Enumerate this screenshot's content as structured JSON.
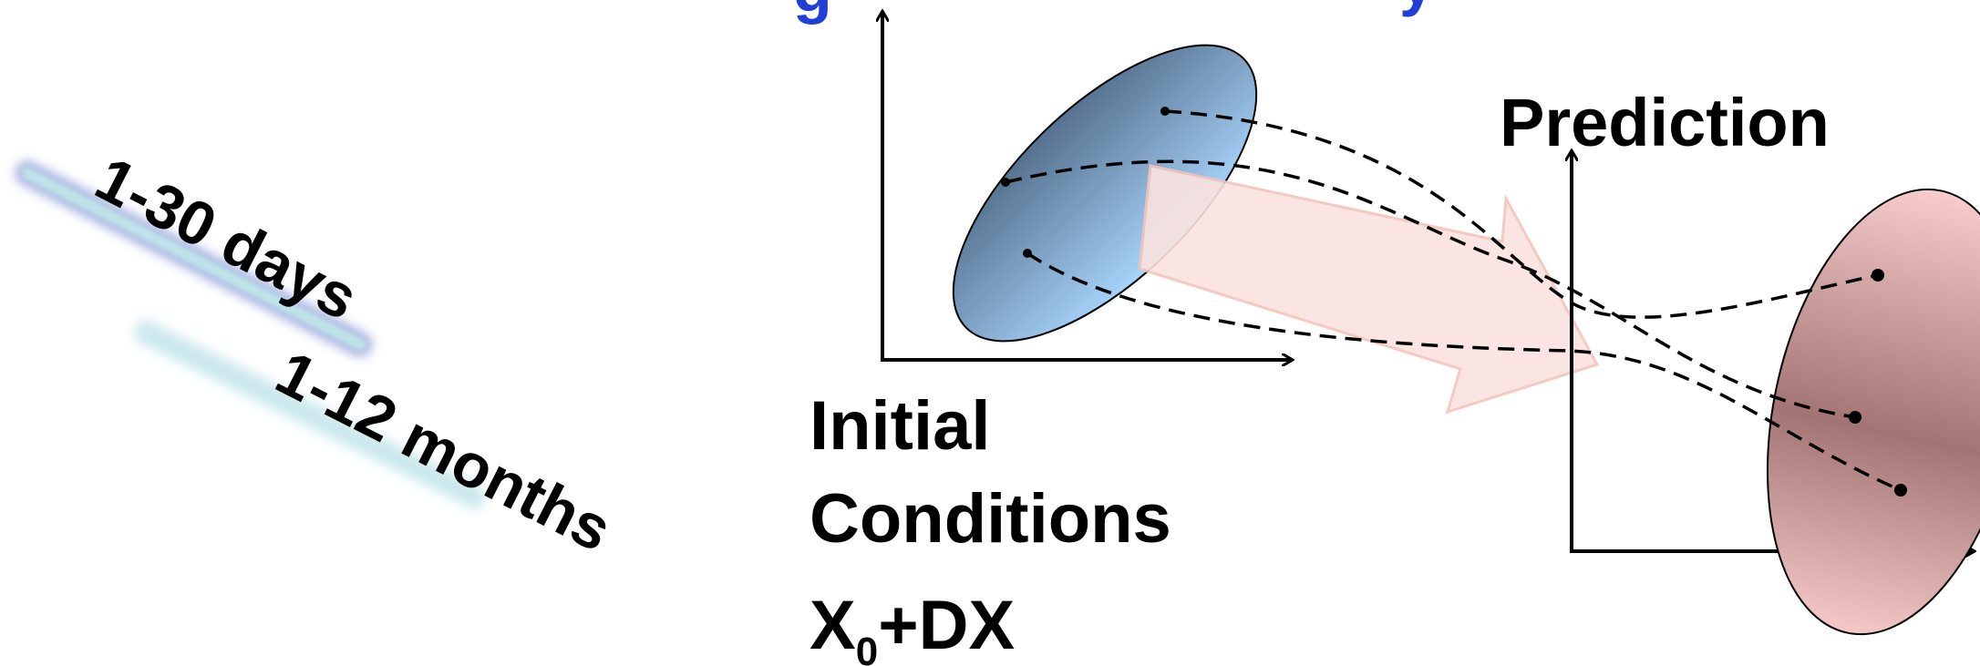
{
  "labels": {
    "range_days": "1-30 days",
    "range_months": "1-12 months",
    "prediction": "Prediction",
    "initial_line1": "Initial",
    "initial_line2": "Conditions",
    "initial_x": "X",
    "initial_sub": "0",
    "initial_rest": "+DX",
    "top_cut_left": "g",
    "top_cut_right": "y"
  },
  "colors": {
    "top_title": "#1f3fd8",
    "initial_ellipse_top": "#5a7696",
    "initial_ellipse_bottom": "#a7d2fa",
    "prediction_ellipse_top": "#f7c9c9",
    "prediction_ellipse_mid": "#a07070",
    "arrow_fill": "#fbe3df",
    "arrow_stroke": "#f3c4bc",
    "banner": "#bfe3e8",
    "banner_glow": "#5a6ec8"
  }
}
